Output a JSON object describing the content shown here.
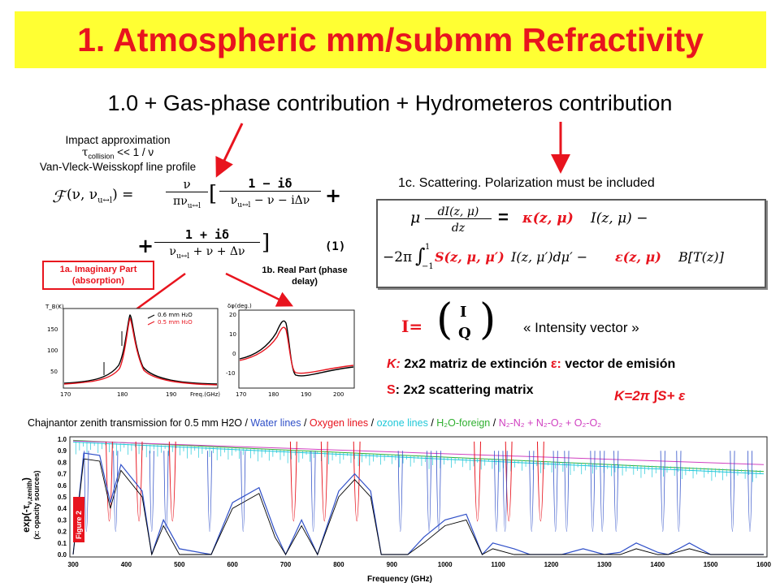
{
  "title": "1. Atmospheric mm/submm Refractivity",
  "subtitle": "1.0 + Gas-phase contribution + Hydrometeros contribution",
  "impact": {
    "line1": "Impact approximation",
    "tau": "τ",
    "tau_sub": "collision",
    "relation": "<< 1 / ν",
    "line3": "Van-Vleck-Weisskopf line profile"
  },
  "vvw_formula": {
    "lhs": "(ν, ν",
    "lhs_sub": "u↔l",
    "lhs_end": ") =",
    "coef_num": "ν",
    "coef_den": "πν",
    "coef_den_sub": "u↔l",
    "t1_num": "1 − iδ",
    "t1_den_a": "ν",
    "t1_den_sub": "u↔l",
    "t1_den_b": " − ν − iΔν",
    "t2_num": "1 + iδ",
    "t2_den_a": "ν",
    "t2_den_sub": "u↔l",
    "t2_den_b": " + ν + Δν",
    "plus": "+",
    "bracket_open": "[",
    "bracket_close": "]",
    "eq_number": "(1)"
  },
  "label_1a": "1a. Imaginary Part (absorption)",
  "label_1b": "1b. Real Part (phase delay)",
  "plot_a": {
    "ylabel": "T_B(K)",
    "legend": [
      {
        "text": "0.6 mm H₂O",
        "color": "#000000"
      },
      {
        "text": "0.5 mm H₂O",
        "color": "#E8141E"
      }
    ],
    "xticks": [
      "170",
      "180",
      "190",
      "Freq.(GHz)"
    ],
    "yticks": [
      "150",
      "100",
      "50"
    ]
  },
  "plot_b": {
    "ylabel": "δφ(deg.)",
    "xticks": [
      "170",
      "180",
      "190",
      "200"
    ],
    "yticks": [
      "20",
      "10",
      "0",
      "-10"
    ]
  },
  "scattering_title": "1c. Scattering. Polarization must be included",
  "rte": {
    "line1_a": "μ",
    "line1_frac_num": "dI(z, μ)",
    "line1_frac_den": "dz",
    "line1_eq": "=",
    "line1_kappa": "κ(z, μ)",
    "line1_I": "I(z, μ) −",
    "line2_a": "−2π",
    "line2_int": "∫",
    "line2_lims_top": "1",
    "line2_lims_bot": "−1",
    "line2_S": "S(z, μ, μ′)",
    "line2_I": "I(z, μ′)dμ′ −",
    "line2_eps": "ε(z, μ)",
    "line2_B": "B[T(z)]"
  },
  "intensity": {
    "lhs": "I=",
    "top": "I",
    "bottom": "Q",
    "label": "« Intensity vector »"
  },
  "k_line": {
    "k": "K:",
    "k_text": " 2x2 matriz de extinción ",
    "eps": "ε:",
    "eps_text": " vector de emisión"
  },
  "s_line": {
    "s": "S",
    "s_text": ": 2x2 scattering matrix"
  },
  "k_formula": "K=2π ∫S+ ε",
  "spectrum_caption": {
    "lead": "Chajnantor zenith transmission for 0.5 mm H2O  / ",
    "water": "Water lines",
    "sep1": " / ",
    "oxygen": "Oxygen lines",
    "sep2": " / ",
    "ozone": "ozone lines",
    "sep3": " / ",
    "h2o_foreign": "H₂O-foreign",
    "sep4": " / ",
    "n2n2": "N₂-N₂ + N₂-O₂ + O₂-O₂"
  },
  "colors": {
    "title_bg": "#FFFF33",
    "title_text": "#E8141E",
    "water": "#3050C8",
    "oxygen": "#E8141E",
    "ozone": "#20C8D8",
    "h2o_foreign": "#30B030",
    "n2": "#D040C0"
  },
  "spectrum": {
    "ylabel": "exp(-τ",
    "ylabel_sub": "ν,zenith",
    "ylabel_end": ")",
    "ylabel2": "(x: opacity sources)",
    "xlabel": "Frequency (GHz)",
    "figure_tag": "Figure 2",
    "yticks": [
      "1.0",
      "0.9",
      "0.8",
      "0.7",
      "0.6",
      "0.5",
      "0.4",
      "0.3",
      "0.2",
      "0.1",
      "0.0"
    ],
    "xticks": [
      "300",
      "400",
      "500",
      "600",
      "700",
      "800",
      "900",
      "1000",
      "1100",
      "1200",
      "1300",
      "1400",
      "1500",
      "1600"
    ]
  }
}
